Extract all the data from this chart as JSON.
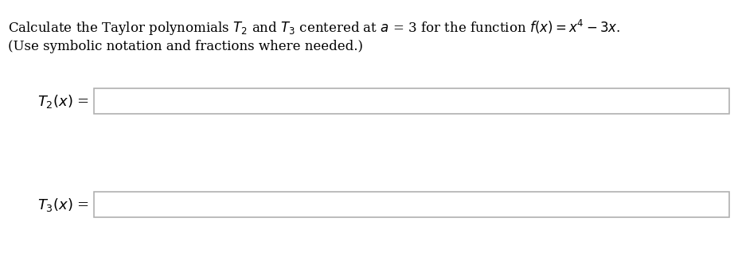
{
  "background_color": "#ffffff",
  "title_line1": "Calculate the Taylor polynomials $T_2$ and $T_3$ centered at $a$ = 3 for the function $f(x) = x^4 - 3x$.",
  "title_line2": "(Use symbolic notation and fractions where needed.)",
  "label1": "$T_2(x)$ =",
  "label2": "$T_3(x)$ =",
  "text_color": "#000000",
  "box_edge_color": "#b0b0b0",
  "box_face_color": "#ffffff",
  "fontsize_title": 12,
  "fontsize_labels": 13
}
